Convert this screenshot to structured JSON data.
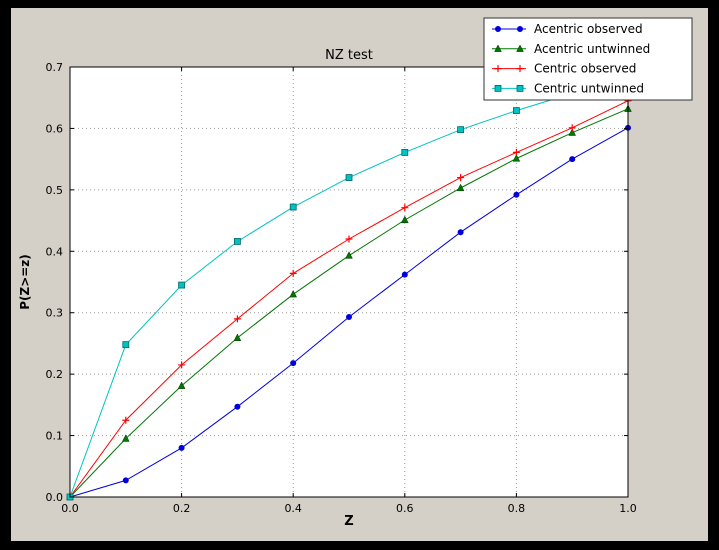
{
  "figure": {
    "background": "#000000",
    "face_color": "#d4d0c8",
    "plot_bg": "#ffffff",
    "grid_color": "#999999",
    "axis_color": "#000000",
    "legend_border": "#333333"
  },
  "chart_data": {
    "type": "line",
    "title": "NZ test",
    "xlabel": "Z",
    "ylabel": "P(Z>=z)",
    "xlim": [
      0.0,
      1.0
    ],
    "ylim": [
      0.0,
      0.7
    ],
    "xticks": [
      0.0,
      0.2,
      0.4,
      0.6,
      0.8,
      1.0
    ],
    "yticks": [
      0.0,
      0.1,
      0.2,
      0.3,
      0.4,
      0.5,
      0.6,
      0.7
    ],
    "grid": true,
    "legend_position": "upper right",
    "x": [
      0.0,
      0.1,
      0.2,
      0.3,
      0.4,
      0.5,
      0.6,
      0.7,
      0.8,
      0.9,
      1.0
    ],
    "series": [
      {
        "name": "Acentric observed",
        "color": "#0000dd",
        "marker": "circle",
        "values": [
          0.0,
          0.027,
          0.08,
          0.147,
          0.218,
          0.293,
          0.362,
          0.431,
          0.492,
          0.55,
          0.601
        ]
      },
      {
        "name": "Acentric untwinned",
        "color": "#007700",
        "marker": "triangle",
        "values": [
          0.0,
          0.095,
          0.181,
          0.259,
          0.33,
          0.393,
          0.451,
          0.503,
          0.551,
          0.593,
          0.632
        ]
      },
      {
        "name": "Centric observed",
        "color": "#ff0000",
        "marker": "plus",
        "values": [
          0.0,
          0.125,
          0.215,
          0.29,
          0.364,
          0.42,
          0.471,
          0.52,
          0.561,
          0.601,
          0.645
        ]
      },
      {
        "name": "Centric untwinned",
        "color": "#00c2c2",
        "marker": "square",
        "values": [
          0.0,
          0.248,
          0.345,
          0.416,
          0.472,
          0.52,
          0.561,
          0.598,
          0.629,
          0.657,
          0.683
        ]
      }
    ]
  }
}
